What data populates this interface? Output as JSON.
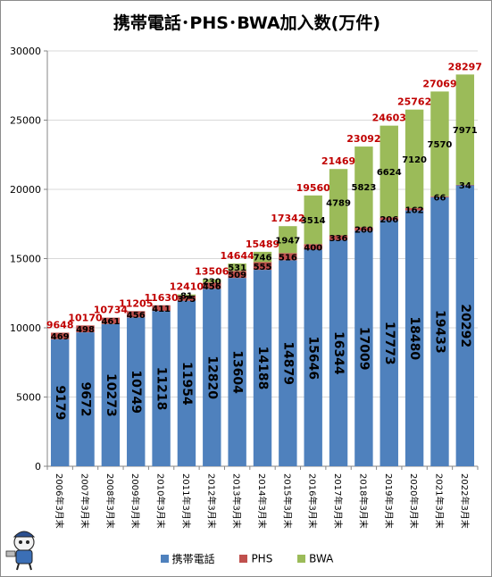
{
  "chart_data": {
    "type": "bar",
    "stacked": true,
    "title": "携帯電話･PHS･BWA加入数(万件)",
    "categories": [
      "2006年3月末",
      "2007年3月末",
      "2008年3月末",
      "2009年3月末",
      "2010年3月末",
      "2011年3月末",
      "2012年3月末",
      "2013年3月末",
      "2014年3月末",
      "2015年3月末",
      "2016年3月末",
      "2017年3月末",
      "2018年3月末",
      "2019年3月末",
      "2020年3月末",
      "2021年3月末",
      "2022年3月末"
    ],
    "series": [
      {
        "name": "携帯電話",
        "color": "#4f81bd",
        "values": [
          9179,
          9672,
          10273,
          10749,
          11218,
          11954,
          12820,
          13604,
          14188,
          14879,
          15646,
          16344,
          17009,
          17773,
          18480,
          19433,
          20292
        ]
      },
      {
        "name": "PHS",
        "color": "#c0504d",
        "values": [
          469,
          498,
          461,
          456,
          411,
          375,
          456,
          509,
          555,
          516,
          400,
          336,
          260,
          206,
          162,
          66,
          34
        ]
      },
      {
        "name": "BWA",
        "color": "#9bbb59",
        "values": [
          null,
          null,
          null,
          null,
          null,
          81,
          230,
          531,
          746,
          1947,
          3514,
          4789,
          5823,
          6624,
          7120,
          7570,
          7971
        ]
      }
    ],
    "totals": [
      9648,
      10170,
      10734,
      11205,
      11630,
      12410,
      13506,
      14644,
      15489,
      17342,
      19560,
      21469,
      23092,
      24603,
      25762,
      27069,
      28297
    ],
    "yticks": [
      0,
      5000,
      10000,
      15000,
      20000,
      25000,
      30000
    ],
    "ylim": [
      0,
      30000
    ],
    "grid": true,
    "legend_position": "bottom",
    "total_label_color": "#c00000"
  }
}
